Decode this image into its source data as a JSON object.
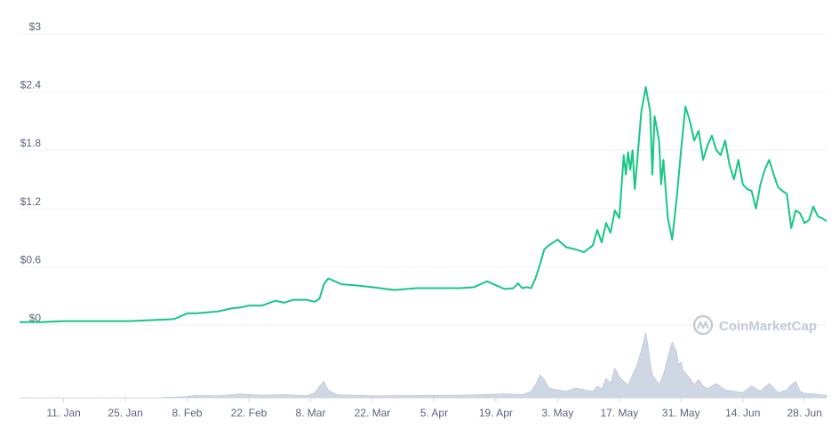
{
  "chart_data": {
    "type": "line",
    "title": "",
    "xlabel": "",
    "ylabel": "",
    "ylim": [
      0,
      3
    ],
    "y_ticks": [
      "$3",
      "$2.4",
      "$1.8",
      "$1.2",
      "$0.6",
      "$0"
    ],
    "y_tick_values": [
      3,
      2.4,
      1.8,
      1.2,
      0.6,
      0
    ],
    "x_ticks": [
      "11. Jan",
      "25. Jan",
      "8. Feb",
      "22. Feb",
      "8. Mar",
      "22. Mar",
      "5. Apr",
      "19. Apr",
      "3. May",
      "17. May",
      "31. May",
      "14. Jun",
      "28. Jun"
    ],
    "x_tick_days": [
      10,
      24,
      38,
      52,
      66,
      80,
      94,
      108,
      122,
      136,
      150,
      164,
      178
    ],
    "x_range_days": [
      0,
      183
    ],
    "grid": true,
    "series": [
      {
        "color": "#16c784",
        "x_days": [
          0,
          5,
          10,
          15,
          20,
          25,
          30,
          35,
          36,
          38,
          40,
          45,
          48,
          50,
          52,
          55,
          58,
          60,
          62,
          65,
          67,
          68,
          69,
          70,
          73,
          76,
          80,
          85,
          90,
          95,
          100,
          103,
          105,
          106,
          108,
          110,
          112,
          113,
          114,
          115,
          116,
          117,
          118,
          119,
          120,
          122,
          124,
          126,
          128,
          130,
          131,
          132,
          133,
          134,
          135,
          136,
          137,
          137.5,
          138,
          138.5,
          139,
          139.5,
          140,
          141,
          142,
          143,
          143.5,
          144,
          145,
          145.5,
          146,
          146.5,
          147,
          148,
          149,
          150,
          151,
          152,
          153,
          154,
          155,
          156,
          157,
          158,
          159,
          160,
          161,
          162,
          163,
          164,
          165,
          166,
          167,
          168,
          169,
          170,
          171,
          172,
          173,
          174,
          175,
          176,
          177,
          178,
          179,
          180,
          181,
          182,
          183
        ],
        "values": [
          0.03,
          0.03,
          0.04,
          0.04,
          0.04,
          0.04,
          0.05,
          0.06,
          0.08,
          0.12,
          0.12,
          0.14,
          0.17,
          0.18,
          0.2,
          0.2,
          0.25,
          0.23,
          0.26,
          0.26,
          0.24,
          0.27,
          0.42,
          0.48,
          0.42,
          0.41,
          0.39,
          0.36,
          0.38,
          0.38,
          0.38,
          0.39,
          0.43,
          0.45,
          0.41,
          0.37,
          0.38,
          0.43,
          0.38,
          0.39,
          0.38,
          0.48,
          0.62,
          0.78,
          0.82,
          0.88,
          0.8,
          0.78,
          0.75,
          0.82,
          0.98,
          0.85,
          1.05,
          0.95,
          1.18,
          1.1,
          1.75,
          1.55,
          1.78,
          1.6,
          1.8,
          1.4,
          1.65,
          2.2,
          2.45,
          2.2,
          1.55,
          2.15,
          1.9,
          1.45,
          1.7,
          1.4,
          1.1,
          0.88,
          1.3,
          1.8,
          2.25,
          2.1,
          1.9,
          2.0,
          1.7,
          1.85,
          1.95,
          1.8,
          1.75,
          1.9,
          1.65,
          1.5,
          1.7,
          1.45,
          1.4,
          1.38,
          1.2,
          1.45,
          1.6,
          1.7,
          1.55,
          1.42,
          1.38,
          1.35,
          1.0,
          1.18,
          1.15,
          1.05,
          1.08,
          1.22,
          1.12,
          1.1,
          1.07
        ]
      }
    ],
    "volume": {
      "color": "#cfd6e4",
      "x_days": [
        0,
        30,
        38,
        40,
        45,
        50,
        55,
        60,
        65,
        67,
        68,
        69,
        70,
        72,
        80,
        100,
        110,
        114,
        116,
        117,
        118,
        119,
        120,
        122,
        124,
        126,
        128,
        130,
        131,
        132,
        133,
        134,
        135,
        136,
        137,
        138,
        139,
        140,
        141,
        142,
        142.5,
        143,
        143.5,
        144,
        145,
        146,
        147,
        148,
        149,
        149.5,
        150,
        150.5,
        151,
        152,
        153,
        154,
        155,
        156,
        158,
        160,
        162,
        164,
        166,
        168,
        170,
        172,
        174,
        175,
        176,
        177,
        178,
        180,
        183
      ],
      "values": [
        0,
        0,
        0.02,
        0.04,
        0.03,
        0.06,
        0.04,
        0.05,
        0.03,
        0.08,
        0.18,
        0.25,
        0.12,
        0.05,
        0.03,
        0.04,
        0.06,
        0.05,
        0.1,
        0.2,
        0.35,
        0.28,
        0.15,
        0.12,
        0.1,
        0.15,
        0.12,
        0.1,
        0.18,
        0.14,
        0.3,
        0.22,
        0.45,
        0.32,
        0.25,
        0.2,
        0.35,
        0.5,
        0.72,
        1.0,
        0.8,
        0.55,
        0.35,
        0.3,
        0.2,
        0.35,
        0.62,
        0.85,
        0.7,
        0.5,
        0.55,
        0.42,
        0.38,
        0.3,
        0.2,
        0.28,
        0.18,
        0.14,
        0.22,
        0.12,
        0.1,
        0.08,
        0.18,
        0.1,
        0.22,
        0.08,
        0.12,
        0.2,
        0.25,
        0.1,
        0.07,
        0.06,
        0.04
      ]
    }
  },
  "watermark": {
    "text": "CoinMarketCap",
    "icon": "coinmarketcap-logo-icon"
  }
}
